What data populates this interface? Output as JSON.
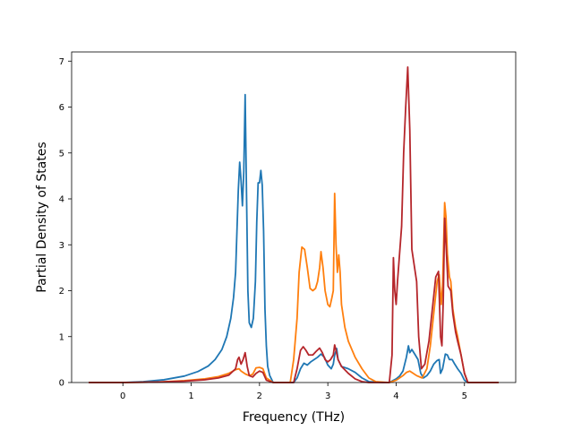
{
  "chart_data": {
    "type": "line",
    "title": "",
    "xlabel": "Frequency (THz)",
    "ylabel": "Partial Density of States",
    "xlim": [
      -0.75,
      5.75
    ],
    "ylim": [
      0,
      7.2
    ],
    "xticks": [
      0,
      1,
      2,
      3,
      4,
      5
    ],
    "yticks": [
      0,
      1,
      2,
      3,
      4,
      5,
      6,
      7
    ],
    "grid": false,
    "legend": "none",
    "series": [
      {
        "color": "#1f77b4",
        "points": [
          [
            -0.5,
            0
          ],
          [
            0,
            0
          ],
          [
            0.3,
            0.02
          ],
          [
            0.6,
            0.06
          ],
          [
            0.9,
            0.14
          ],
          [
            1.1,
            0.24
          ],
          [
            1.25,
            0.36
          ],
          [
            1.35,
            0.5
          ],
          [
            1.45,
            0.72
          ],
          [
            1.52,
            1.0
          ],
          [
            1.58,
            1.4
          ],
          [
            1.62,
            1.85
          ],
          [
            1.65,
            2.4
          ],
          [
            1.67,
            3.3
          ],
          [
            1.69,
            4.2
          ],
          [
            1.71,
            4.8
          ],
          [
            1.73,
            4.4
          ],
          [
            1.75,
            3.85
          ],
          [
            1.77,
            4.6
          ],
          [
            1.79,
            6.27
          ],
          [
            1.81,
            4.1
          ],
          [
            1.83,
            2.0
          ],
          [
            1.85,
            1.3
          ],
          [
            1.88,
            1.2
          ],
          [
            1.91,
            1.4
          ],
          [
            1.94,
            2.2
          ],
          [
            1.96,
            3.5
          ],
          [
            1.98,
            4.35
          ],
          [
            2.0,
            4.35
          ],
          [
            2.02,
            4.62
          ],
          [
            2.04,
            4.3
          ],
          [
            2.06,
            3.3
          ],
          [
            2.08,
            1.6
          ],
          [
            2.1,
            0.8
          ],
          [
            2.12,
            0.35
          ],
          [
            2.15,
            0.15
          ],
          [
            2.2,
            0.0
          ],
          [
            2.5,
            0.0
          ],
          [
            2.55,
            0.1
          ],
          [
            2.6,
            0.3
          ],
          [
            2.65,
            0.42
          ],
          [
            2.7,
            0.38
          ],
          [
            2.75,
            0.45
          ],
          [
            2.8,
            0.5
          ],
          [
            2.85,
            0.55
          ],
          [
            2.9,
            0.62
          ],
          [
            2.95,
            0.55
          ],
          [
            3.0,
            0.38
          ],
          [
            3.05,
            0.3
          ],
          [
            3.08,
            0.4
          ],
          [
            3.1,
            0.6
          ],
          [
            3.13,
            0.74
          ],
          [
            3.15,
            0.5
          ],
          [
            3.2,
            0.35
          ],
          [
            3.3,
            0.3
          ],
          [
            3.4,
            0.22
          ],
          [
            3.5,
            0.1
          ],
          [
            3.6,
            0.02
          ],
          [
            3.8,
            0.0
          ],
          [
            3.9,
            0.0
          ],
          [
            3.95,
            0.04
          ],
          [
            4.0,
            0.08
          ],
          [
            4.05,
            0.14
          ],
          [
            4.1,
            0.25
          ],
          [
            4.15,
            0.55
          ],
          [
            4.18,
            0.8
          ],
          [
            4.2,
            0.65
          ],
          [
            4.23,
            0.72
          ],
          [
            4.28,
            0.6
          ],
          [
            4.32,
            0.5
          ],
          [
            4.36,
            0.2
          ],
          [
            4.4,
            0.1
          ],
          [
            4.45,
            0.15
          ],
          [
            4.5,
            0.25
          ],
          [
            4.55,
            0.4
          ],
          [
            4.6,
            0.48
          ],
          [
            4.63,
            0.5
          ],
          [
            4.65,
            0.2
          ],
          [
            4.68,
            0.3
          ],
          [
            4.72,
            0.62
          ],
          [
            4.75,
            0.6
          ],
          [
            4.78,
            0.5
          ],
          [
            4.82,
            0.5
          ],
          [
            4.85,
            0.42
          ],
          [
            4.9,
            0.3
          ],
          [
            4.95,
            0.2
          ],
          [
            5.0,
            0.05
          ],
          [
            5.05,
            0.0
          ],
          [
            5.5,
            0.0
          ]
        ]
      },
      {
        "color": "#ff7f0e",
        "points": [
          [
            -0.5,
            0
          ],
          [
            0,
            0
          ],
          [
            0.5,
            0.01
          ],
          [
            0.9,
            0.04
          ],
          [
            1.2,
            0.08
          ],
          [
            1.4,
            0.13
          ],
          [
            1.55,
            0.2
          ],
          [
            1.65,
            0.28
          ],
          [
            1.7,
            0.3
          ],
          [
            1.73,
            0.25
          ],
          [
            1.76,
            0.22
          ],
          [
            1.8,
            0.18
          ],
          [
            1.85,
            0.15
          ],
          [
            1.9,
            0.18
          ],
          [
            1.95,
            0.32
          ],
          [
            2.0,
            0.33
          ],
          [
            2.05,
            0.3
          ],
          [
            2.1,
            0.1
          ],
          [
            2.2,
            0.0
          ],
          [
            2.45,
            0.0
          ],
          [
            2.5,
            0.5
          ],
          [
            2.55,
            1.4
          ],
          [
            2.58,
            2.4
          ],
          [
            2.62,
            2.95
          ],
          [
            2.66,
            2.9
          ],
          [
            2.7,
            2.5
          ],
          [
            2.74,
            2.05
          ],
          [
            2.78,
            2.0
          ],
          [
            2.82,
            2.05
          ],
          [
            2.85,
            2.2
          ],
          [
            2.88,
            2.5
          ],
          [
            2.9,
            2.85
          ],
          [
            2.93,
            2.5
          ],
          [
            2.96,
            2.0
          ],
          [
            3.0,
            1.7
          ],
          [
            3.03,
            1.65
          ],
          [
            3.06,
            1.85
          ],
          [
            3.08,
            2.0
          ],
          [
            3.1,
            4.12
          ],
          [
            3.12,
            3.0
          ],
          [
            3.14,
            2.4
          ],
          [
            3.16,
            2.78
          ],
          [
            3.18,
            2.4
          ],
          [
            3.2,
            1.7
          ],
          [
            3.25,
            1.2
          ],
          [
            3.3,
            0.9
          ],
          [
            3.4,
            0.55
          ],
          [
            3.5,
            0.3
          ],
          [
            3.6,
            0.1
          ],
          [
            3.7,
            0.02
          ],
          [
            3.9,
            0.0
          ],
          [
            4.0,
            0.05
          ],
          [
            4.05,
            0.1
          ],
          [
            4.1,
            0.15
          ],
          [
            4.15,
            0.22
          ],
          [
            4.2,
            0.25
          ],
          [
            4.25,
            0.2
          ],
          [
            4.3,
            0.15
          ],
          [
            4.38,
            0.1
          ],
          [
            4.45,
            0.3
          ],
          [
            4.5,
            0.8
          ],
          [
            4.55,
            1.5
          ],
          [
            4.6,
            2.2
          ],
          [
            4.63,
            2.35
          ],
          [
            4.66,
            1.7
          ],
          [
            4.68,
            2.1
          ],
          [
            4.71,
            3.92
          ],
          [
            4.73,
            3.6
          ],
          [
            4.75,
            2.8
          ],
          [
            4.78,
            2.3
          ],
          [
            4.8,
            2.2
          ],
          [
            4.83,
            1.6
          ],
          [
            4.87,
            1.2
          ],
          [
            4.9,
            1.0
          ],
          [
            4.95,
            0.6
          ],
          [
            5.0,
            0.2
          ],
          [
            5.05,
            0.0
          ],
          [
            5.5,
            0.0
          ]
        ]
      },
      {
        "color": "#b5262b",
        "points": [
          [
            -0.5,
            0
          ],
          [
            0,
            0
          ],
          [
            0.5,
            0.01
          ],
          [
            0.9,
            0.03
          ],
          [
            1.2,
            0.06
          ],
          [
            1.4,
            0.1
          ],
          [
            1.55,
            0.16
          ],
          [
            1.65,
            0.3
          ],
          [
            1.68,
            0.5
          ],
          [
            1.7,
            0.55
          ],
          [
            1.73,
            0.4
          ],
          [
            1.76,
            0.5
          ],
          [
            1.79,
            0.65
          ],
          [
            1.82,
            0.35
          ],
          [
            1.85,
            0.15
          ],
          [
            1.9,
            0.12
          ],
          [
            1.95,
            0.2
          ],
          [
            2.0,
            0.25
          ],
          [
            2.05,
            0.22
          ],
          [
            2.1,
            0.05
          ],
          [
            2.2,
            0.0
          ],
          [
            2.5,
            0.0
          ],
          [
            2.55,
            0.3
          ],
          [
            2.6,
            0.7
          ],
          [
            2.64,
            0.78
          ],
          [
            2.68,
            0.7
          ],
          [
            2.72,
            0.6
          ],
          [
            2.78,
            0.6
          ],
          [
            2.83,
            0.68
          ],
          [
            2.88,
            0.75
          ],
          [
            2.92,
            0.65
          ],
          [
            2.96,
            0.5
          ],
          [
            3.0,
            0.45
          ],
          [
            3.04,
            0.5
          ],
          [
            3.08,
            0.6
          ],
          [
            3.1,
            0.82
          ],
          [
            3.12,
            0.7
          ],
          [
            3.15,
            0.5
          ],
          [
            3.2,
            0.35
          ],
          [
            3.3,
            0.2
          ],
          [
            3.4,
            0.08
          ],
          [
            3.5,
            0.02
          ],
          [
            3.6,
            0.0
          ],
          [
            3.9,
            0.0
          ],
          [
            3.94,
            0.6
          ],
          [
            3.96,
            2.72
          ],
          [
            3.98,
            2.0
          ],
          [
            4.0,
            1.7
          ],
          [
            4.02,
            2.2
          ],
          [
            4.05,
            2.8
          ],
          [
            4.08,
            3.4
          ],
          [
            4.11,
            5.0
          ],
          [
            4.14,
            6.0
          ],
          [
            4.17,
            6.87
          ],
          [
            4.2,
            5.5
          ],
          [
            4.23,
            2.9
          ],
          [
            4.26,
            2.6
          ],
          [
            4.3,
            2.2
          ],
          [
            4.33,
            1.0
          ],
          [
            4.37,
            0.3
          ],
          [
            4.42,
            0.4
          ],
          [
            4.48,
            0.9
          ],
          [
            4.53,
            1.6
          ],
          [
            4.58,
            2.3
          ],
          [
            4.62,
            2.42
          ],
          [
            4.65,
            1.0
          ],
          [
            4.67,
            0.8
          ],
          [
            4.69,
            1.8
          ],
          [
            4.71,
            3.58
          ],
          [
            4.73,
            3.0
          ],
          [
            4.76,
            2.1
          ],
          [
            4.78,
            2.05
          ],
          [
            4.8,
            2.0
          ],
          [
            4.83,
            1.5
          ],
          [
            4.87,
            1.1
          ],
          [
            4.9,
            0.9
          ],
          [
            4.95,
            0.6
          ],
          [
            5.0,
            0.2
          ],
          [
            5.05,
            0.0
          ],
          [
            5.5,
            0.0
          ]
        ]
      }
    ]
  }
}
